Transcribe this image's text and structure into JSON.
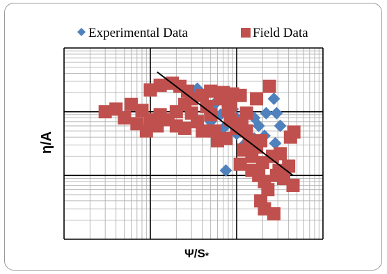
{
  "chart_data": {
    "type": "scatter",
    "xlabel": "Ψ/S",
    "xlabel_subscript": "*",
    "ylabel": "η/A",
    "x_scale": "log",
    "y_scale": "log",
    "xlim": [
      0.01,
      10
    ],
    "ylim": [
      0.01,
      10
    ],
    "grid": true,
    "legend_position": "top",
    "series": [
      {
        "name": "Experimental Data",
        "marker": "diamond",
        "color": "#4f81bd",
        "points": [
          [
            0.35,
            2.3
          ],
          [
            0.45,
            2.0
          ],
          [
            0.6,
            1.5
          ],
          [
            0.8,
            1.7
          ],
          [
            0.55,
            1.3
          ],
          [
            0.9,
            1.1
          ],
          [
            1.3,
            0.9
          ],
          [
            1.6,
            0.8
          ],
          [
            2.2,
            0.95
          ],
          [
            2.7,
            1.6
          ],
          [
            1.8,
            0.6
          ],
          [
            0.7,
            0.55
          ],
          [
            0.5,
            0.7
          ],
          [
            1.0,
            0.45
          ],
          [
            1.6,
            0.38
          ],
          [
            2.1,
            0.42
          ],
          [
            1.2,
            0.3
          ],
          [
            0.75,
            0.12
          ],
          [
            2.5,
            0.2
          ],
          [
            3.2,
            0.6
          ],
          [
            2.8,
            0.32
          ],
          [
            1.0,
            0.8
          ],
          [
            2.9,
            0.95
          ],
          [
            0.65,
            0.9
          ]
        ]
      },
      {
        "name": "Field Data",
        "marker": "square",
        "color": "#c0504d",
        "points": [
          [
            0.1,
            2.2
          ],
          [
            0.13,
            2.6
          ],
          [
            0.18,
            2.8
          ],
          [
            0.22,
            2.5
          ],
          [
            0.27,
            2.1
          ],
          [
            0.3,
            1.6
          ],
          [
            0.4,
            1.8
          ],
          [
            0.5,
            2.1
          ],
          [
            0.65,
            1.6
          ],
          [
            0.7,
            2.0
          ],
          [
            0.9,
            1.9
          ],
          [
            1.1,
            1.8
          ],
          [
            0.85,
            1.3
          ],
          [
            1.7,
            1.6
          ],
          [
            2.4,
            2.5
          ],
          [
            0.03,
            1.0
          ],
          [
            0.04,
            1.1
          ],
          [
            0.06,
            1.3
          ],
          [
            0.08,
            1.05
          ],
          [
            0.05,
            0.8
          ],
          [
            0.07,
            0.65
          ],
          [
            0.1,
            0.75
          ],
          [
            0.09,
            0.5
          ],
          [
            0.12,
            0.6
          ],
          [
            0.13,
            0.9
          ],
          [
            0.16,
            0.75
          ],
          [
            0.2,
            0.6
          ],
          [
            0.25,
            0.55
          ],
          [
            0.3,
            0.95
          ],
          [
            0.35,
            0.7
          ],
          [
            0.4,
            0.5
          ],
          [
            0.5,
            0.9
          ],
          [
            0.55,
            0.5
          ],
          [
            0.6,
            0.35
          ],
          [
            0.75,
            0.38
          ],
          [
            0.85,
            0.75
          ],
          [
            1.0,
            0.55
          ],
          [
            1.15,
            0.65
          ],
          [
            1.3,
            0.5
          ],
          [
            1.4,
            0.35
          ],
          [
            1.2,
            0.25
          ],
          [
            1.5,
            0.2
          ],
          [
            1.7,
            0.28
          ],
          [
            1.9,
            0.35
          ],
          [
            1.1,
            0.15
          ],
          [
            1.5,
            0.12
          ],
          [
            1.8,
            0.1
          ],
          [
            2.0,
            0.16
          ],
          [
            2.1,
            0.08
          ],
          [
            2.3,
            0.06
          ],
          [
            1.9,
            0.04
          ],
          [
            2.1,
            0.03
          ],
          [
            2.7,
            0.025
          ],
          [
            2.9,
            0.1
          ],
          [
            3.1,
            0.12
          ],
          [
            3.5,
            0.09
          ],
          [
            4.0,
            0.14
          ],
          [
            4.5,
            0.07
          ],
          [
            2.6,
            0.2
          ],
          [
            3.2,
            0.22
          ],
          [
            4.2,
            0.4
          ],
          [
            4.6,
            0.48
          ],
          [
            0.45,
            1.2
          ],
          [
            0.2,
            1.0
          ],
          [
            0.25,
            1.3
          ],
          [
            1.3,
            0.95
          ],
          [
            0.8,
            1.05
          ]
        ]
      }
    ],
    "trendline": {
      "x": [
        0.12,
        4.5
      ],
      "y": [
        4.2,
        0.1
      ],
      "color": "#000000"
    }
  }
}
